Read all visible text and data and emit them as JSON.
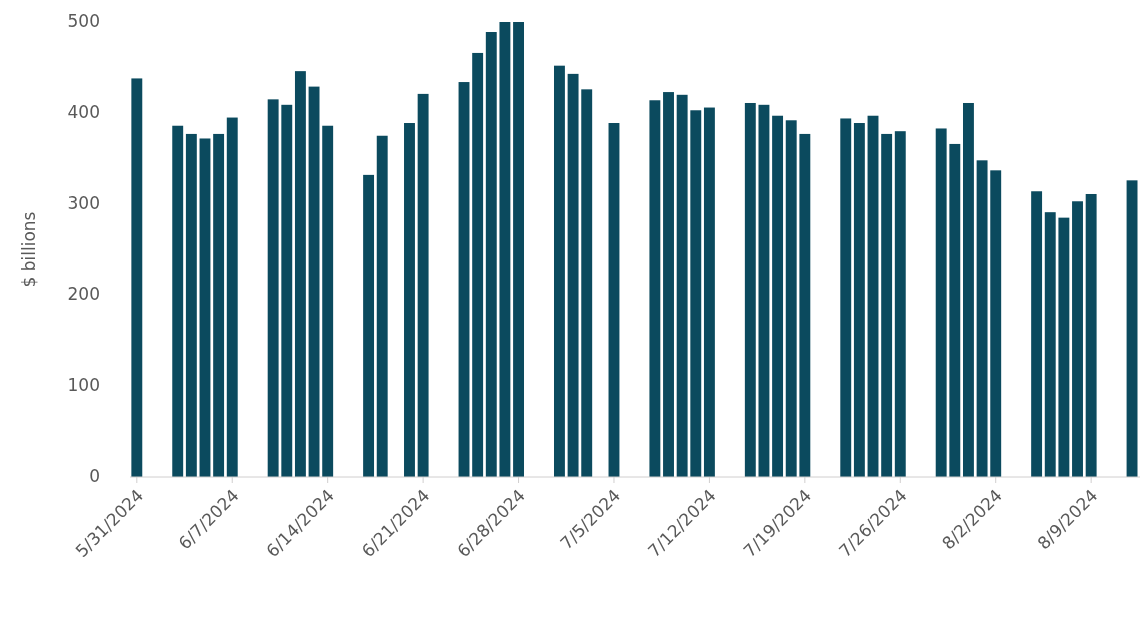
{
  "chart_data": {
    "type": "bar",
    "ylabel": "$ billions",
    "x": [
      "2024-05-31",
      "2024-06-03",
      "2024-06-04",
      "2024-06-05",
      "2024-06-06",
      "2024-06-07",
      "2024-06-10",
      "2024-06-11",
      "2024-06-12",
      "2024-06-13",
      "2024-06-14",
      "2024-06-17",
      "2024-06-18",
      "2024-06-20",
      "2024-06-21",
      "2024-06-24",
      "2024-06-25",
      "2024-06-26",
      "2024-06-27",
      "2024-06-28",
      "2024-07-01",
      "2024-07-02",
      "2024-07-03",
      "2024-07-05",
      "2024-07-08",
      "2024-07-09",
      "2024-07-10",
      "2024-07-11",
      "2024-07-12",
      "2024-07-15",
      "2024-07-16",
      "2024-07-17",
      "2024-07-18",
      "2024-07-19",
      "2024-07-22",
      "2024-07-23",
      "2024-07-24",
      "2024-07-25",
      "2024-07-26",
      "2024-07-29",
      "2024-07-30",
      "2024-07-31",
      "2024-08-01",
      "2024-08-02",
      "2024-08-05",
      "2024-08-06",
      "2024-08-07",
      "2024-08-08",
      "2024-08-09",
      "2024-08-12"
    ],
    "values": [
      438,
      386,
      377,
      372,
      377,
      395,
      415,
      409,
      446,
      429,
      386,
      332,
      375,
      389,
      421,
      434,
      466,
      489,
      500,
      500,
      452,
      443,
      426,
      389,
      414,
      423,
      420,
      403,
      406,
      411,
      409,
      397,
      392,
      377,
      394,
      389,
      397,
      377,
      380,
      383,
      366,
      411,
      348,
      337,
      314,
      291,
      285,
      303,
      311,
      326
    ],
    "color": "#0b4a5e",
    "xlim": [
      "2024-05-30T12:00",
      "2024-08-12T14:00"
    ],
    "xticks": [
      {
        "value": "2024-05-31",
        "label": "5/31/2024"
      },
      {
        "value": "2024-06-07",
        "label": "6/7/2024"
      },
      {
        "value": "2024-06-14",
        "label": "6/14/2024"
      },
      {
        "value": "2024-06-21",
        "label": "6/21/2024"
      },
      {
        "value": "2024-06-28",
        "label": "6/28/2024"
      },
      {
        "value": "2024-07-05",
        "label": "7/5/2024"
      },
      {
        "value": "2024-07-12",
        "label": "7/12/2024"
      },
      {
        "value": "2024-07-19",
        "label": "7/19/2024"
      },
      {
        "value": "2024-07-26",
        "label": "7/26/2024"
      },
      {
        "value": "2024-08-02",
        "label": "8/2/2024"
      },
      {
        "value": "2024-08-09",
        "label": "8/9/2024"
      }
    ],
    "ylim": [
      0,
      500
    ],
    "yticks": [
      0,
      100,
      200,
      300,
      400,
      500
    ],
    "grid": false
  }
}
